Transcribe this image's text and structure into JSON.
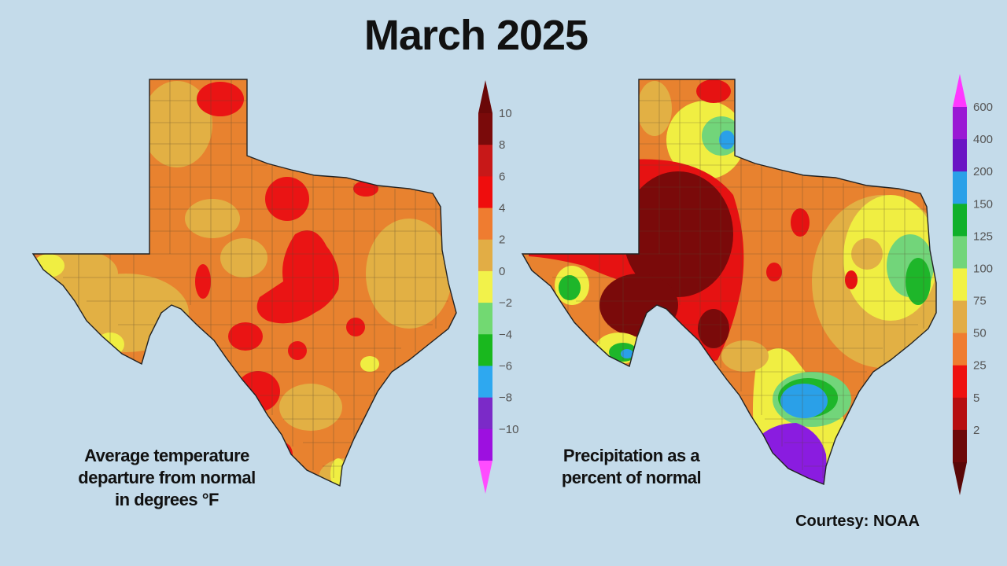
{
  "title": "March 2025",
  "maps": {
    "temperature": {
      "caption_lines": [
        "Average temperature",
        "departure from normal",
        "in degrees °F"
      ],
      "legend": {
        "ticks": [
          "10",
          "8",
          "6",
          "4",
          "2",
          "0",
          "−2",
          "−4",
          "−6",
          "−8",
          "−10"
        ],
        "colors": [
          "#7a0a0a",
          "#c81818",
          "#ef0d0d",
          "#ef7c30",
          "#e2ad45",
          "#f2f24a",
          "#72d972",
          "#19b81e",
          "#2ea8f0",
          "#7b2ac8",
          "#9d10e0"
        ],
        "top_arrow_color": "#6a0808",
        "bottom_arrow_color": "#ff4cff"
      },
      "palette": {
        "base": "#e8822f",
        "light": "#e2b044",
        "hot": "#ea1414",
        "yellow": "#f0ee42"
      }
    },
    "precipitation": {
      "caption_lines": [
        "Precipitation as a",
        "percent of normal"
      ],
      "legend": {
        "ticks": [
          "600",
          "400",
          "200",
          "150",
          "125",
          "100",
          "75",
          "50",
          "25",
          "5",
          "2"
        ],
        "colors": [
          "#9a18d4",
          "#6a14c4",
          "#2aa0e8",
          "#10b02a",
          "#72d57a",
          "#f2f243",
          "#e2ac45",
          "#ef7c30",
          "#ee1010",
          "#b60d10",
          "#6d0808"
        ],
        "top_arrow_color": "#ff38ff",
        "bottom_arrow_color": "#5a0707"
      },
      "palette": {
        "dark": "#7a0a0a",
        "red": "#e61212",
        "orange": "#e8822f",
        "tan": "#e2b044",
        "yellow": "#f0ee42",
        "lightgreen": "#72d57a",
        "green": "#1eb62a",
        "blue": "#2aa0e8",
        "purple": "#8a1ce0"
      }
    }
  },
  "courtesy": "Courtesy: NOAA"
}
